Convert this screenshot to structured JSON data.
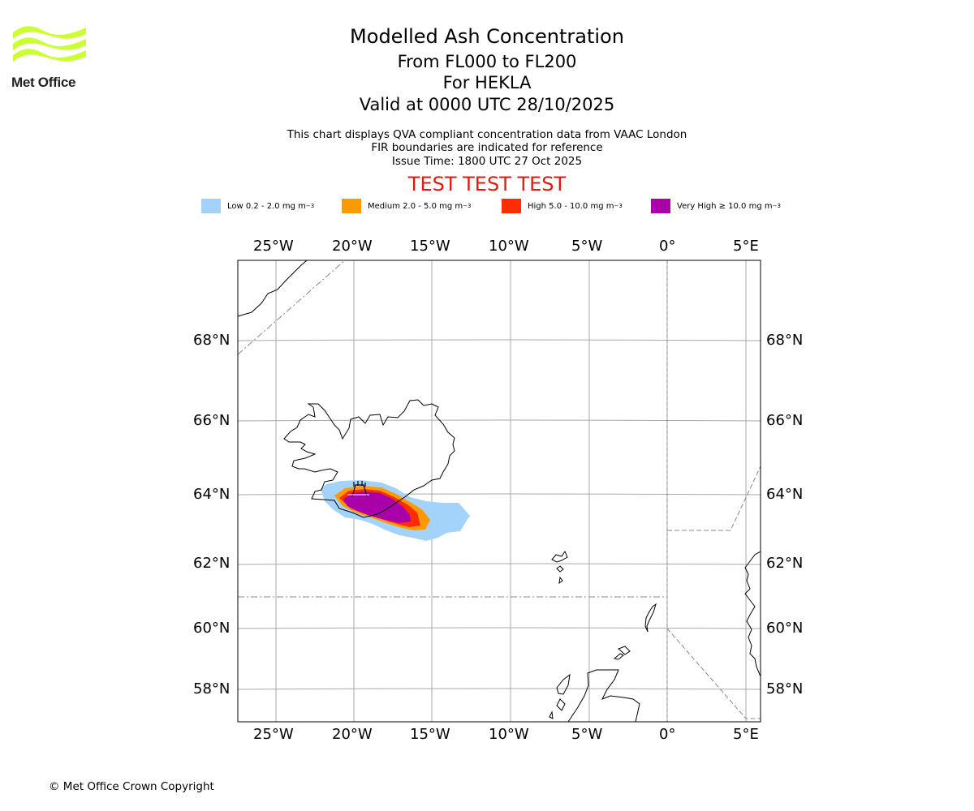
{
  "header": {
    "logo_text": "Met Office",
    "title": "Modelled Ash Concentration",
    "levels": "From FL000 to FL200",
    "volcano": "For HEKLA",
    "valid": "Valid at 0000 UTC 28/10/2025",
    "note1": "This chart displays QVA compliant concentration data from VAAC London",
    "note2": "FIR boundaries are indicated for reference",
    "issue": "Issue Time: 1800 UTC 27 Oct 2025",
    "banner": "TEST TEST TEST"
  },
  "legend": [
    {
      "label": "Low 0.2 - 2.0 mg m",
      "color": "#a3d3fb"
    },
    {
      "label": "Medium 2.0 - 5.0 mg m",
      "color": "#ff9900"
    },
    {
      "label": "High 5.0 - 10.0 mg m",
      "color": "#ff2d00"
    },
    {
      "label": "Very High ≥ 10.0 mg m",
      "color": "#aa00aa"
    }
  ],
  "legend_exponent": "−3",
  "map": {
    "lon_ticks": [
      "25°W",
      "20°W",
      "15°W",
      "10°W",
      "5°W",
      "0°",
      "5°E"
    ],
    "lat_ticks": [
      "68°N",
      "66°N",
      "64°N",
      "62°N",
      "60°N",
      "58°N"
    ]
  },
  "footer": {
    "copyright": "© Met Office Crown Copyright"
  }
}
